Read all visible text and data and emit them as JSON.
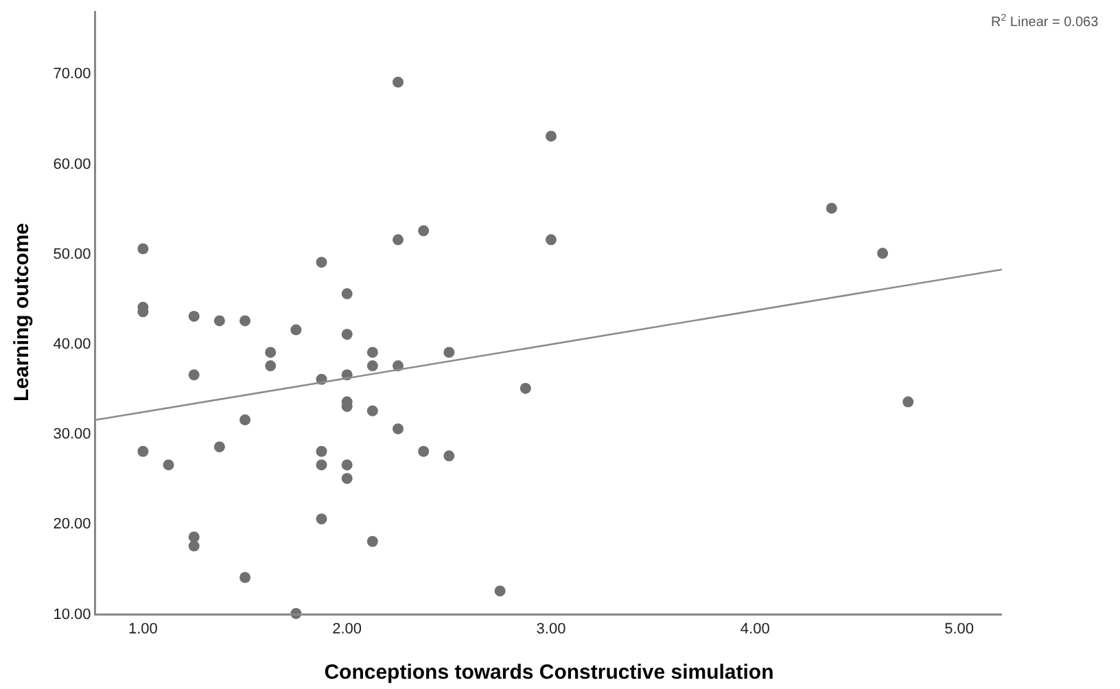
{
  "chart_data": {
    "type": "scatter",
    "xlabel": "Conceptions towards Constructive simulation",
    "ylabel": "Learning outcome",
    "annotations": [
      "R$^{2}$ Linear = 0.063"
    ],
    "series": [
      {
        "color": "#707070",
        "marker": "circle",
        "x": [
          1,
          1,
          1,
          1,
          1.125,
          1.25,
          1.25,
          1.25,
          1.25,
          1.375,
          1.375,
          1.5,
          1.5,
          1.5,
          1.625,
          1.625,
          1.75,
          1.75,
          1.875,
          1.875,
          1.875,
          1.875,
          1.875,
          2,
          2,
          2,
          2,
          2,
          2,
          2,
          2.125,
          2.125,
          2.125,
          2.125,
          2.25,
          2.25,
          2.25,
          2.25,
          2.375,
          2.375,
          2.5,
          2.5,
          2.75,
          2.875,
          3,
          3,
          4.375,
          4.625,
          4.75
        ],
        "values": [
          50.5,
          44,
          43.5,
          28,
          26.5,
          43,
          36.5,
          18.5,
          17.5,
          42.5,
          28.5,
          42.5,
          31.5,
          14,
          39,
          37.5,
          41.5,
          10,
          49,
          36,
          28,
          26.5,
          20.5,
          45.5,
          41,
          36.5,
          33.5,
          33,
          26.5,
          25,
          39,
          37.5,
          32.5,
          18,
          69,
          51.5,
          37.5,
          30.5,
          52.5,
          28,
          39,
          27.5,
          12.5,
          35,
          63,
          51.5,
          55,
          50,
          33.5
        ]
      },
      {
        "type": "line",
        "marker": "none",
        "color": "#8c8c8c",
        "x": [
          0.77,
          5.21
        ],
        "values": [
          31.5,
          48.2
        ]
      }
    ],
    "xlim": [
      0.77,
      5.21
    ],
    "ylim": [
      10,
      76.9
    ],
    "xticks": [
      {
        "value": 1,
        "label": "1.00"
      },
      {
        "value": 2,
        "label": "2.00"
      },
      {
        "value": 3,
        "label": "3.00"
      },
      {
        "value": 4,
        "label": "4.00"
      },
      {
        "value": 5,
        "label": "5.00"
      }
    ],
    "yticks": [
      {
        "value": 10,
        "label": "10.00"
      },
      {
        "value": 20,
        "label": "20.00"
      },
      {
        "value": 30,
        "label": "30.00"
      },
      {
        "value": 40,
        "label": "40.00"
      },
      {
        "value": 50,
        "label": "50.00"
      },
      {
        "value": 60,
        "label": "60.00"
      },
      {
        "value": 70,
        "label": "70.00"
      }
    ],
    "grid": false
  }
}
